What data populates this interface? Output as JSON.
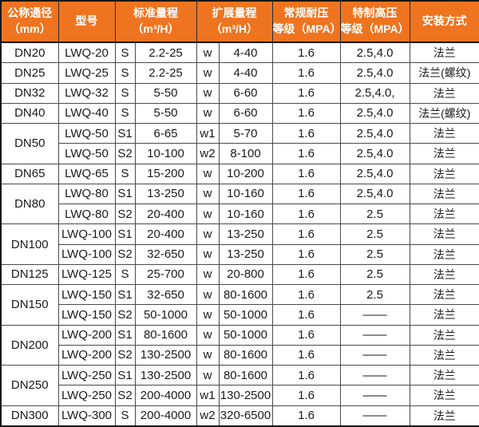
{
  "colors": {
    "header_bg": "#ef7420",
    "header_text": "#ffffff",
    "body_text": "#1a1a1a",
    "grid_line": "#4a4a4a",
    "outer_border": "#161616"
  },
  "table": {
    "headers": [
      {
        "label": "公称通径\n（mm）"
      },
      {
        "label": "型号"
      },
      {
        "label": "标准量程\n（m³/H）"
      },
      {
        "label": "扩展量程\n（m³/H）"
      },
      {
        "label": "常规耐压\n等级（MPA）"
      },
      {
        "label": "特制高压\n等级（MPA）"
      },
      {
        "label": "安装方式"
      }
    ],
    "rows": [
      {
        "dn": {
          "label": "DN20",
          "rowspan": 1
        },
        "model": "LWQ-20",
        "s": "S",
        "std": "2.2-25",
        "w": "w",
        "ext": "4-40",
        "normal": "1.6",
        "high": "2.5,4.0",
        "install": "法兰"
      },
      {
        "dn": {
          "label": "DN25",
          "rowspan": 1
        },
        "model": "LWQ-25",
        "s": "S",
        "std": "2.2-25",
        "w": "w",
        "ext": "4-40",
        "normal": "1.6",
        "high": "2.5,4.0",
        "install": "法兰(螺纹)"
      },
      {
        "dn": {
          "label": "DN32",
          "rowspan": 1
        },
        "model": "LWQ-32",
        "s": "S",
        "std": "5-50",
        "w": "w",
        "ext": "6-60",
        "normal": "1.6",
        "high": "2.5,4.0,",
        "install": "法兰"
      },
      {
        "dn": {
          "label": "DN40",
          "rowspan": 1
        },
        "model": "LWQ-40",
        "s": "S",
        "std": "5-50",
        "w": "w",
        "ext": "6-60",
        "normal": "1.6",
        "high": "2.5,4.0",
        "install": "法兰(螺纹)"
      },
      {
        "dn": {
          "label": "DN50",
          "rowspan": 2
        },
        "model": "LWQ-50",
        "s": "S1",
        "std": "6-65",
        "w": "w1",
        "ext": "5-70",
        "normal": "1.6",
        "high": "2.5,4.0",
        "install": "法兰"
      },
      {
        "model": "LWQ-50",
        "s": "S2",
        "std": "10-100",
        "w": "w2",
        "ext": "8-100",
        "normal": "1.6",
        "high": "2.5,4.0",
        "install": "法兰"
      },
      {
        "dn": {
          "label": "DN65",
          "rowspan": 1
        },
        "model": "LWQ-65",
        "s": "S",
        "std": "15-200",
        "w": "w",
        "ext": "10-200",
        "normal": "1.6",
        "high": "2.5,4.0",
        "install": "法兰"
      },
      {
        "dn": {
          "label": "DN80",
          "rowspan": 2
        },
        "model": "LWQ-80",
        "s": "S1",
        "std": "13-250",
        "w": "w",
        "ext": "10-160",
        "normal": "1.6",
        "high": "2.5,4.0",
        "install": "法兰"
      },
      {
        "model": "LWQ-80",
        "s": "S2",
        "std": "20-400",
        "w": "w",
        "ext": "10-160",
        "normal": "1.6",
        "high": "2.5",
        "install": "法兰"
      },
      {
        "dn": {
          "label": "DN100",
          "rowspan": 2
        },
        "model": "LWQ-100",
        "s": "S1",
        "std": "20-400",
        "w": "w",
        "ext": "13-250",
        "normal": "1.6",
        "high": "2.5",
        "install": "法兰"
      },
      {
        "model": "LWQ-100",
        "s": "S2",
        "std": "32-650",
        "w": "w",
        "ext": "13-250",
        "normal": "1.6",
        "high": "2.5",
        "install": "法兰"
      },
      {
        "dn": {
          "label": "DN125",
          "rowspan": 1
        },
        "model": "LWQ-125",
        "s": "S",
        "std": "25-700",
        "w": "w",
        "ext": "20-800",
        "normal": "1.6",
        "high": "2.5",
        "install": "法兰"
      },
      {
        "dn": {
          "label": "DN150",
          "rowspan": 2
        },
        "model": "LWQ-150",
        "s": "S1",
        "std": "32-650",
        "w": "w",
        "ext": "80-1600",
        "normal": "1.6",
        "high": "2.5",
        "install": "法兰"
      },
      {
        "model": "LWQ-150",
        "s": "S2",
        "std": "50-1000",
        "w": "w",
        "ext": "50-1000",
        "normal": "1.6",
        "high": "——",
        "install": "法兰"
      },
      {
        "dn": {
          "label": "DN200",
          "rowspan": 2
        },
        "model": "LWQ-200",
        "s": "S1",
        "std": "80-1600",
        "w": "w",
        "ext": "50-1000",
        "normal": "1.6",
        "high": "——",
        "install": "法兰"
      },
      {
        "model": "LWQ-200",
        "s": "S2",
        "std": "130-2500",
        "w": "w",
        "ext": "80-1600",
        "normal": "1.6",
        "high": "——",
        "install": "法兰"
      },
      {
        "dn": {
          "label": "DN250",
          "rowspan": 2
        },
        "model": "LWQ-250",
        "s": "S1",
        "std": "130-2500",
        "w": "w",
        "ext": "80-1600",
        "normal": "1.6",
        "high": "——",
        "install": "法兰"
      },
      {
        "model": "LWQ-250",
        "s": "S2",
        "std": "200-4000",
        "w": "w1",
        "ext": "130-2500",
        "normal": "1.6",
        "high": "——",
        "install": "法兰"
      },
      {
        "dn": {
          "label": "DN300",
          "rowspan": 1
        },
        "model": "LWQ-300",
        "s": "S",
        "std": "200-4000",
        "w": "w2",
        "ext": "320-6500",
        "normal": "1.6",
        "high": "——",
        "install": "法兰"
      }
    ]
  }
}
